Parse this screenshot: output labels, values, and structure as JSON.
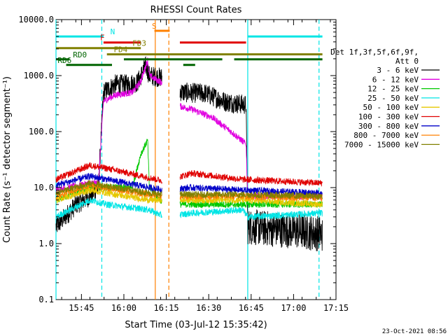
{
  "chart_data": {
    "type": "line",
    "title": "RHESSI Count Rates",
    "xlabel": "Start Time (03-Jul-12 15:35:42)",
    "ylabel": "Count Rate (s⁻¹ detector segment⁻¹)",
    "yscale": "log",
    "ylim": [
      0.1,
      10000
    ],
    "xlim_minutes": [
      15.6,
      17.25
    ],
    "y_ticks": [
      "0.1",
      "1.0",
      "10.0",
      "100.0",
      "1000.0",
      "10000.0"
    ],
    "x_ticks": [
      "15:45",
      "16:00",
      "16:15",
      "16:30",
      "16:45",
      "17:00",
      "17:15"
    ],
    "legend_header": [
      "Det 1f,3f,5f,6f,9f,",
      "Att 0"
    ],
    "legend_placement": "right",
    "footer_timestamp": "23-Oct-2021 08:56",
    "data_gap_hours": [
      16.225,
      16.33
    ],
    "series": [
      {
        "name": "3 - 6 keV",
        "color": "#000000",
        "levels": [
          [
            15.6,
            2.0
          ],
          [
            15.72,
            5.0
          ],
          [
            15.8,
            7.0
          ],
          [
            15.85,
            10.0
          ],
          [
            15.88,
            500
          ],
          [
            15.95,
            700
          ],
          [
            16.02,
            700
          ],
          [
            16.08,
            750
          ],
          [
            16.13,
            1500
          ],
          [
            16.15,
            1000
          ],
          [
            16.24,
            900
          ],
          [
            16.28,
            600
          ],
          [
            16.35,
            500
          ],
          [
            16.48,
            480
          ],
          [
            16.6,
            340
          ],
          [
            16.72,
            300
          ],
          [
            16.73,
            2.0
          ],
          [
            17.0,
            1.7
          ],
          [
            17.17,
            1.5
          ]
        ]
      },
      {
        "name": "6 - 12 keV",
        "color": "#e000e0",
        "levels": [
          [
            15.6,
            9.0
          ],
          [
            15.8,
            12.0
          ],
          [
            15.85,
            12.0
          ],
          [
            15.88,
            350
          ],
          [
            15.95,
            450
          ],
          [
            16.05,
            500
          ],
          [
            16.1,
            800
          ],
          [
            16.14,
            1900
          ],
          [
            16.15,
            1000
          ],
          [
            16.24,
            700
          ],
          [
            16.3,
            300
          ],
          [
            16.4,
            250
          ],
          [
            16.52,
            180
          ],
          [
            16.65,
            90
          ],
          [
            16.72,
            60
          ],
          [
            16.73,
            7.0
          ],
          [
            17.17,
            7.0
          ]
        ]
      },
      {
        "name": "12 - 25 keV",
        "color": "#00c800",
        "levels": [
          [
            15.6,
            6.0
          ],
          [
            15.8,
            10.0
          ],
          [
            16.05,
            10.0
          ],
          [
            16.1,
            40.0
          ],
          [
            16.14,
            70.0
          ],
          [
            16.15,
            10.0
          ],
          [
            16.24,
            5.0
          ],
          [
            16.4,
            5.0
          ],
          [
            16.7,
            5.0
          ],
          [
            17.17,
            5.0
          ]
        ]
      },
      {
        "name": "25 - 50 keV",
        "color": "#00e5e5",
        "levels": [
          [
            15.6,
            3.0
          ],
          [
            15.8,
            6.0
          ],
          [
            15.9,
            5.0
          ],
          [
            16.15,
            4.0
          ],
          [
            16.24,
            3.0
          ],
          [
            16.4,
            3.5
          ],
          [
            16.7,
            4.0
          ],
          [
            16.73,
            3.0
          ],
          [
            17.17,
            3.5
          ]
        ]
      },
      {
        "name": "50 - 100 keV",
        "color": "#e6c800",
        "levels": [
          [
            15.6,
            6.0
          ],
          [
            15.8,
            9.0
          ],
          [
            16.15,
            6.0
          ],
          [
            16.24,
            6.0
          ],
          [
            16.7,
            6.0
          ],
          [
            17.17,
            5.0
          ]
        ]
      },
      {
        "name": "100 - 300 keV",
        "color": "#e00000",
        "levels": [
          [
            15.6,
            14.0
          ],
          [
            15.8,
            25.0
          ],
          [
            15.9,
            22.0
          ],
          [
            16.15,
            15.0
          ],
          [
            16.24,
            13.0
          ],
          [
            16.4,
            18.0
          ],
          [
            16.7,
            14.0
          ],
          [
            17.17,
            12.0
          ]
        ]
      },
      {
        "name": "300 - 800 keV",
        "color": "#0000c8",
        "levels": [
          [
            15.6,
            11.0
          ],
          [
            15.8,
            16.0
          ],
          [
            15.9,
            14.0
          ],
          [
            16.15,
            10.0
          ],
          [
            16.24,
            9.0
          ],
          [
            16.4,
            10.0
          ],
          [
            16.7,
            9.0
          ],
          [
            17.17,
            8.0
          ]
        ]
      },
      {
        "name": "800 - 7000 keV",
        "color": "#ff8000",
        "levels": [
          [
            15.6,
            7.0
          ],
          [
            15.8,
            11.0
          ],
          [
            16.15,
            7.5
          ],
          [
            16.24,
            7.0
          ],
          [
            16.7,
            7.0
          ],
          [
            17.17,
            6.5
          ]
        ]
      },
      {
        "name": "7000 - 15000 keV",
        "color": "#808000",
        "levels": [
          [
            15.6,
            8.0
          ],
          [
            15.8,
            12.0
          ],
          [
            16.15,
            8.0
          ],
          [
            16.24,
            7.5
          ],
          [
            16.7,
            7.5
          ],
          [
            17.17,
            7.0
          ]
        ]
      }
    ],
    "flag_bars": [
      {
        "label": "N",
        "color": "#00e5e5",
        "segments": [
          [
            15.6,
            15.88
          ],
          [
            16.73,
            17.17
          ]
        ],
        "level": 5000,
        "label_at": 15.92
      },
      {
        "label": "F",
        "color": "#e00000",
        "segments": [
          [
            15.88,
            16.1
          ],
          [
            16.33,
            16.72
          ]
        ],
        "level": 3900,
        "label_at": 15.86
      },
      {
        "label": "S",
        "color": "#ff8000",
        "segments": [
          [
            16.18,
            16.27
          ]
        ],
        "level": 6300,
        "label_at": 16.165
      },
      {
        "label": "FD3",
        "color": "#808000",
        "segments": [
          [
            15.6,
            16.1
          ]
        ],
        "level": 3100,
        "label_at": 16.05
      },
      {
        "label": "FD4",
        "color": "#808000",
        "segments": [
          [
            15.9,
            17.17
          ]
        ],
        "level": 2400,
        "label_at": 15.94
      },
      {
        "label": "RD0",
        "color": "#006400",
        "segments": [
          [
            15.6,
            15.68
          ],
          [
            16.0,
            16.58
          ],
          [
            16.65,
            17.17
          ]
        ],
        "level": 1950,
        "label_at": 15.7
      },
      {
        "label": "RD6",
        "color": "#006400",
        "segments": [
          [
            15.66,
            15.93
          ],
          [
            16.35,
            16.42
          ]
        ],
        "level": 1550,
        "label_at": 15.61
      }
    ],
    "vertical_markers": [
      {
        "color": "#00e5e5",
        "style": "solid",
        "x": 15.6
      },
      {
        "color": "#00e5e5",
        "style": "dashed",
        "x": 15.87
      },
      {
        "color": "#ff8000",
        "style": "solid",
        "x": 16.185
      },
      {
        "color": "#ff8000",
        "style": "dashed",
        "x": 16.265
      },
      {
        "color": "#00e5e5",
        "style": "solid",
        "x": 16.73
      },
      {
        "color": "#00e5e5",
        "style": "dashed",
        "x": 17.15
      }
    ]
  }
}
